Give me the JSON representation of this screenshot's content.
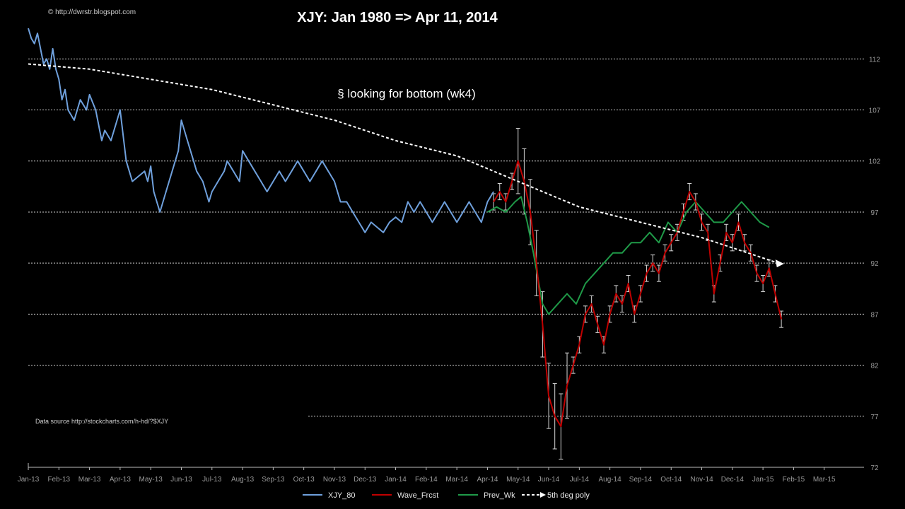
{
  "chart_data": {
    "type": "line",
    "title": "XJY: Jan 1980  => Apr 11, 2014",
    "copyright": "© http://dwrstr.blogspot.com",
    "annotation": "§ looking for bottom  (wk4)",
    "source_note": "Data source http://stockcharts.com/h-hd/?$XJY",
    "xlabel": "",
    "ylabel": "",
    "x_ticks": [
      "Jan-13",
      "Feb-13",
      "Mar-13",
      "Apr-13",
      "May-13",
      "Jun-13",
      "Jul-13",
      "Aug-13",
      "Sep-13",
      "Oct-13",
      "Nov-13",
      "Dec-13",
      "Jan-14",
      "Feb-14",
      "Mar-14",
      "Apr-14",
      "May-14",
      "Jun-14",
      "Jul-14",
      "Aug-14",
      "Sep-14",
      "Oct-14",
      "Nov-14",
      "Dec-14",
      "Jan-15",
      "Feb-15",
      "Mar-15"
    ],
    "xlim": [
      0,
      27.3
    ],
    "y_ticks": [
      72,
      77,
      82,
      87,
      92,
      97,
      102,
      107,
      112
    ],
    "ylim": [
      72,
      115
    ],
    "grid": "horizontal-dashed",
    "legend_position": "bottom",
    "colors": {
      "XJY_80": "#6fa0dc",
      "Wave_Frcst": "#c00000",
      "Prev_Wk": "#1f9a48",
      "5th deg poly": "#ffffff",
      "errorbar": "#d8d8d8"
    },
    "series": [
      {
        "name": "XJY_80",
        "x": [
          0,
          0.1,
          0.2,
          0.3,
          0.4,
          0.5,
          0.6,
          0.7,
          0.8,
          0.9,
          1.0,
          1.1,
          1.2,
          1.3,
          1.5,
          1.7,
          1.9,
          2.0,
          2.2,
          2.4,
          2.5,
          2.7,
          2.9,
          3.0,
          3.2,
          3.4,
          3.6,
          3.8,
          3.9,
          4.0,
          4.1,
          4.2,
          4.3,
          4.5,
          4.7,
          4.9,
          5.0,
          5.2,
          5.4,
          5.5,
          5.7,
          5.9,
          6.0,
          6.2,
          6.4,
          6.5,
          6.7,
          6.9,
          7.0,
          7.2,
          7.4,
          7.6,
          7.8,
          8.0,
          8.2,
          8.4,
          8.6,
          8.8,
          9.0,
          9.2,
          9.4,
          9.6,
          9.8,
          10.0,
          10.2,
          10.4,
          10.6,
          10.8,
          11.0,
          11.2,
          11.4,
          11.6,
          11.8,
          12.0,
          12.2,
          12.4,
          12.6,
          12.8,
          13.0,
          13.2,
          13.4,
          13.6,
          13.8,
          14.0,
          14.2,
          14.4,
          14.6,
          14.8,
          15.0,
          15.2
        ],
        "values": [
          115,
          114,
          113.5,
          114.5,
          113,
          111.5,
          112,
          111,
          113,
          111,
          110,
          108,
          109,
          107,
          106,
          108,
          107,
          108.5,
          107,
          104,
          105,
          104,
          106,
          107,
          102,
          100,
          100.5,
          101,
          100,
          101.5,
          99,
          98,
          97,
          99,
          101,
          103,
          106,
          104,
          102,
          101,
          100,
          98,
          99,
          100,
          101,
          102,
          101,
          100,
          103,
          102,
          101,
          100,
          99,
          100,
          101,
          100,
          101,
          102,
          101,
          100,
          101,
          102,
          101,
          100,
          98,
          98,
          97,
          96,
          95,
          96,
          95.5,
          95,
          96,
          96.5,
          96,
          98,
          97,
          98,
          97,
          96,
          97,
          98,
          97,
          96,
          97,
          98,
          97,
          96,
          98,
          99
        ]
      },
      {
        "name": "Wave_Frcst",
        "x": [
          15.2,
          15.4,
          15.6,
          15.8,
          16.0,
          16.2,
          16.4,
          16.6,
          16.8,
          17.0,
          17.2,
          17.4,
          17.6,
          17.8,
          18.0,
          18.2,
          18.4,
          18.6,
          18.8,
          19.0,
          19.2,
          19.4,
          19.6,
          19.8,
          20.0,
          20.2,
          20.4,
          20.6,
          20.8,
          21.0,
          21.2,
          21.4,
          21.6,
          21.8,
          22.0,
          22.2,
          22.4,
          22.6,
          22.8,
          23.0,
          23.2,
          23.4,
          23.6,
          23.8,
          24.0,
          24.2,
          24.4,
          24.6
        ],
        "values": [
          98,
          99,
          98,
          100,
          102,
          100,
          97,
          92,
          86,
          79,
          77,
          76,
          80,
          82,
          84,
          87,
          88,
          86,
          84,
          87,
          89,
          88,
          90,
          87,
          89,
          91,
          92,
          91,
          93,
          94,
          95,
          97,
          99,
          98,
          96,
          95,
          89,
          92,
          95,
          94,
          96,
          94,
          93,
          91,
          90,
          91.5,
          89,
          86.5
        ]
      },
      {
        "name": "Prev_Wk",
        "x": [
          15.0,
          15.3,
          15.6,
          15.9,
          16.1,
          16.3,
          16.5,
          16.8,
          17.0,
          17.3,
          17.6,
          17.9,
          18.2,
          18.5,
          18.8,
          19.1,
          19.4,
          19.7,
          20.0,
          20.3,
          20.6,
          20.9,
          21.2,
          21.5,
          21.8,
          22.1,
          22.4,
          22.7,
          23.0,
          23.3,
          23.6,
          23.9,
          24.2
        ],
        "values": [
          97,
          97.5,
          97,
          98,
          98.5,
          96,
          93,
          88,
          87,
          88,
          89,
          88,
          90,
          91,
          92,
          93,
          93,
          94,
          94,
          95,
          94,
          96,
          95,
          97,
          98,
          97,
          96,
          96,
          97,
          98,
          97,
          96,
          95.5
        ]
      },
      {
        "name": "5th deg poly",
        "x": [
          0,
          2,
          4,
          6,
          8,
          10,
          12,
          14,
          16,
          18,
          20,
          22,
          23,
          24,
          24.5
        ],
        "values": [
          111.5,
          111,
          110,
          109,
          107.5,
          106,
          104,
          102.5,
          100,
          97.5,
          96,
          94.5,
          93.5,
          92.5,
          92
        ]
      }
    ]
  }
}
